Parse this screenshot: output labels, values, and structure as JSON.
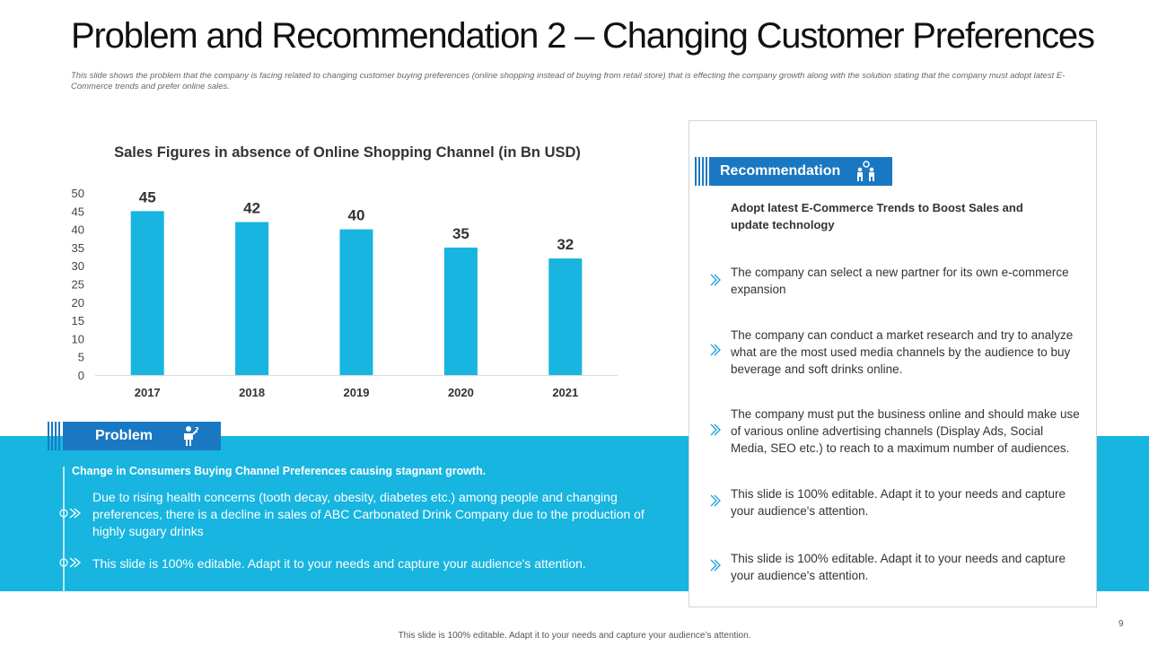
{
  "title": "Problem and Recommendation 2 – Changing Customer Preferences",
  "subtitle": "This slide shows the problem that the company is facing related to changing customer buying preferences (online shopping instead of buying from retail store) that is effecting the company growth along with the solution stating that the company must adopt latest E-Commerce trends and prefer online sales.",
  "chart_data": {
    "type": "bar",
    "title": "Sales Figures in absence of Online Shopping Channel (in Bn USD)",
    "categories": [
      "2017",
      "2018",
      "2019",
      "2020",
      "2021"
    ],
    "values": [
      45,
      42,
      40,
      35,
      32
    ],
    "ylim": [
      0,
      50
    ],
    "yticks": [
      0,
      5,
      10,
      15,
      20,
      25,
      30,
      35,
      40,
      45,
      50
    ],
    "xlabel": "",
    "ylabel": "",
    "grid": false,
    "bar_color": "#17b5e0"
  },
  "problem": {
    "label": "Problem",
    "icon": "thinking-person-icon",
    "heading": "Change in Consumers Buying Channel Preferences causing stagnant growth.",
    "points": [
      "Due to rising health concerns (tooth decay, obesity, diabetes etc.) among people and changing preferences, there is a decline in sales of ABC Carbonated Drink Company due to the production of highly sugary drinks",
      "This slide is 100% editable. Adapt it to your needs and capture your audience's attention."
    ]
  },
  "recommendation": {
    "label": "Recommendation",
    "icon": "people-idea-icon",
    "heading": "Adopt latest E-Commerce Trends to Boost Sales and update technology",
    "points": [
      "The company can select a new partner for its own e-commerce expansion",
      "The company can conduct a market research and try to analyze what are the most used media channels by the audience to buy beverage and soft drinks online.",
      "The company must put the business online and should make use of various online advertising channels (Display Ads, Social Media, SEO etc.) to reach to a maximum number of audiences.",
      "This slide is 100% editable. Adapt it to your needs and capture your audience's attention.",
      "This slide is 100% editable. Adapt it to your needs and capture your audience's attention."
    ]
  },
  "colors": {
    "accent": "#17b5e0",
    "tab": "#1a78c2"
  },
  "page_number": "9",
  "footer": "This slide is 100% editable. Adapt it to your needs and capture your audience’s attention."
}
